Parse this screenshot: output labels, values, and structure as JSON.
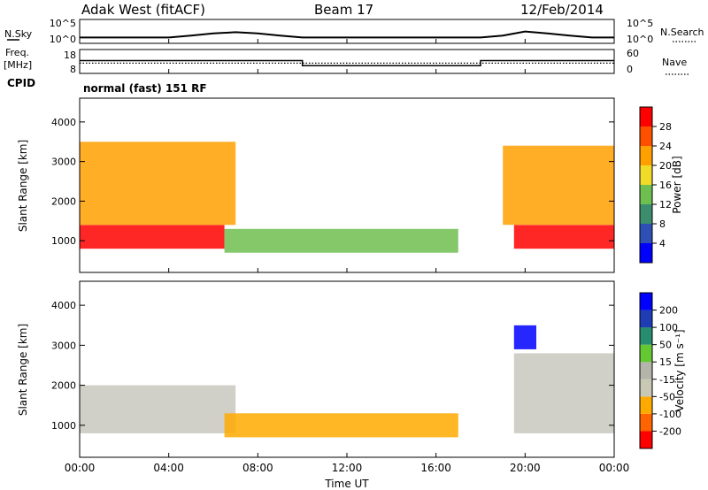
{
  "header": {
    "radar": "Adak West (fitACF)",
    "beam": "Beam 17",
    "date": "12/Feb/2014"
  },
  "top_panel": {
    "left_label": "N.Sky",
    "left_ticks": [
      "10^5",
      "10^0"
    ],
    "right_ticks": [
      "10^5",
      "10^0"
    ],
    "right_label": "N.Search"
  },
  "freq_panel": {
    "left_label_1": "Freq.",
    "left_label_2": "[MHz]",
    "left_ticks": [
      "18",
      "8"
    ],
    "right_ticks": [
      "60",
      "0"
    ],
    "right_label": "Nave",
    "cpid_label": "CPID",
    "cpid_value": "normal (fast) 151 RF"
  },
  "power_panel": {
    "ylabel": "Slant Range [km]",
    "y_ticks": [
      "4000",
      "3000",
      "2000",
      "1000"
    ],
    "colorbar_label": "Power [dB]",
    "colorbar_ticks": [
      "28",
      "24",
      "20",
      "16",
      "12",
      "8",
      "4"
    ]
  },
  "velocity_panel": {
    "ylabel": "Slant Range [km]",
    "y_ticks": [
      "4000",
      "3000",
      "2000",
      "1000"
    ],
    "colorbar_label": "Velocity [m s⁻¹]",
    "colorbar_ticks": [
      "200",
      "100",
      "50",
      "15",
      "-15",
      "-50",
      "-100",
      "-200"
    ]
  },
  "x_axis": {
    "ticks": [
      "00:00",
      "04:00",
      "08:00",
      "12:00",
      "16:00",
      "20:00",
      "00:00"
    ],
    "label": "Time UT"
  },
  "colors": {
    "power_scale": [
      "#0000ff",
      "#2e50b4",
      "#3c8c6e",
      "#6ebe50",
      "#f0dc28",
      "#ffa000",
      "#ff5000",
      "#ff0000"
    ],
    "velocity_scale": [
      "#ff0000",
      "#ff6400",
      "#ffaa00",
      "#c8c8b4",
      "#b4b4aa",
      "#64c832",
      "#288c6e",
      "#1e3cb4",
      "#0000ff"
    ],
    "ground_scatter": "#c8c8be"
  },
  "chart_data": [
    {
      "type": "line",
      "title": "N.Sky / N.Search",
      "x_unit": "hours UT",
      "xlim": [
        0,
        24
      ],
      "y_scale": "log",
      "ylim": [
        1,
        100000
      ],
      "series": [
        {
          "name": "N.Sky",
          "x": [
            0,
            1,
            2,
            3,
            4,
            5,
            6,
            7,
            8,
            9,
            10,
            11,
            12,
            13,
            14,
            15,
            16,
            17,
            18,
            19,
            20,
            21,
            22,
            23,
            24
          ],
          "y": [
            10,
            10,
            10,
            10,
            10,
            30,
            100,
            200,
            100,
            30,
            10,
            10,
            10,
            10,
            10,
            10,
            10,
            10,
            10,
            30,
            300,
            100,
            30,
            10,
            10
          ]
        }
      ]
    },
    {
      "type": "line",
      "title": "Freq. / Nave",
      "x_unit": "hours UT",
      "xlim": [
        0,
        24
      ],
      "series": [
        {
          "name": "Freq.",
          "x": [
            0,
            10,
            10,
            18,
            18,
            24
          ],
          "y": [
            13.5,
            13.5,
            10.5,
            10.5,
            13.5,
            13.5
          ]
        },
        {
          "name": "Nave",
          "x": [
            0,
            24
          ],
          "y": [
            12,
            12
          ]
        }
      ]
    },
    {
      "type": "heatmap",
      "title": "Power [dB]",
      "x_unit": "hours UT",
      "xlim": [
        0,
        24
      ],
      "ylabel": "Slant Range [km]",
      "ylim": [
        200,
        4600
      ],
      "zlim": [
        0,
        30
      ],
      "regions": [
        {
          "desc": "near-range band",
          "t": [
            0,
            6.5
          ],
          "range": [
            800,
            1400
          ],
          "power_db": 28
        },
        {
          "desc": "slanting streaks",
          "t": [
            0,
            7
          ],
          "range": [
            1400,
            3500
          ],
          "power_db": 20
        },
        {
          "desc": "midday band",
          "t": [
            6.5,
            17
          ],
          "range": [
            700,
            1300
          ],
          "power_db": 12
        },
        {
          "desc": "evening band",
          "t": [
            19.5,
            24
          ],
          "range": [
            800,
            1400
          ],
          "power_db": 28
        },
        {
          "desc": "evening streaks",
          "t": [
            19,
            24
          ],
          "range": [
            1400,
            3400
          ],
          "power_db": 20
        }
      ]
    },
    {
      "type": "heatmap",
      "title": "Velocity [m s⁻¹]",
      "x_unit": "hours UT",
      "xlim": [
        0,
        24
      ],
      "ylabel": "Slant Range [km]",
      "ylim": [
        200,
        4600
      ],
      "zlim": [
        -200,
        200
      ],
      "regions": [
        {
          "desc": "ground scatter",
          "t": [
            0,
            7
          ],
          "range": [
            800,
            2000
          ],
          "velocity": 0
        },
        {
          "desc": "midday band",
          "t": [
            6.5,
            17
          ],
          "range": [
            700,
            1300
          ],
          "velocity": -50
        },
        {
          "desc": "evening ground scatter",
          "t": [
            19.5,
            24
          ],
          "range": [
            800,
            2800
          ],
          "velocity": 0
        },
        {
          "desc": "evening high-velocity patch",
          "t": [
            19.5,
            20.5
          ],
          "range": [
            2900,
            3500
          ],
          "velocity": 200
        }
      ]
    }
  ]
}
